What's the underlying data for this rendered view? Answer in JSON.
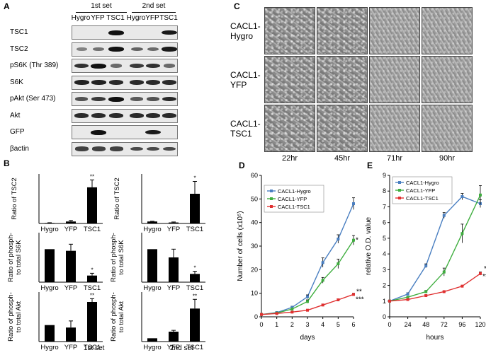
{
  "panelA": {
    "letter": "A",
    "set1": "1st set",
    "set2": "2nd set",
    "lanes": [
      "Hygro",
      "YFP",
      "TSC1",
      "Hygro",
      "YFP",
      "TSC1"
    ],
    "rows": [
      "TSC1",
      "TSC2",
      "pS6K (Thr 389)",
      "S6K",
      "pAkt (Ser 473)",
      "Akt",
      "GFP",
      "βactin"
    ]
  },
  "panelB": {
    "letter": "B",
    "set1_label": "1st set",
    "set2_label": "2nd set",
    "categories": [
      "Hygro",
      "YFP",
      "TSC1"
    ],
    "charts": [
      {
        "ylabel": "Ratio of TSC2",
        "yticks": [
          "0",
          "50",
          "100"
        ],
        "ymax": 100,
        "values": [
          1,
          4,
          73
        ],
        "errors": [
          0.5,
          2,
          15
        ],
        "sig": [
          "",
          "",
          "**"
        ]
      },
      {
        "ylabel": "Ratio of TSC2",
        "yticks": [
          "0",
          "50",
          "100"
        ],
        "ymax": 100,
        "values": [
          4,
          2,
          60
        ],
        "errors": [
          0.5,
          1,
          25
        ],
        "sig": [
          "",
          "",
          "*"
        ]
      },
      {
        "ylabel": "Ratio of phosph- to total S6K",
        "yticks": [
          "0",
          "0.5",
          "1",
          "1.5"
        ],
        "ymax": 1.5,
        "values": [
          1,
          0.95,
          0.2
        ],
        "errors": [
          0,
          0.2,
          0.07
        ],
        "sig": [
          "",
          "",
          "*"
        ]
      },
      {
        "ylabel": "Ratio of phosph- to total S6K",
        "yticks": [
          "0",
          "0.5",
          "1",
          "1.5"
        ],
        "ymax": 1.5,
        "values": [
          1,
          0.75,
          0.25
        ],
        "errors": [
          0,
          0.25,
          0.08
        ],
        "sig": [
          "",
          "",
          "*"
        ]
      },
      {
        "ylabel": "Ratio of phosph- to total Akt",
        "yticks": [
          "0",
          "1",
          "2",
          "3"
        ],
        "ymax": 3,
        "values": [
          1,
          0.85,
          2.4
        ],
        "errors": [
          0,
          0.4,
          0.2
        ],
        "sig": [
          "",
          "",
          "**"
        ]
      },
      {
        "ylabel": "Ratio of phosph- to total Akt",
        "yticks": [
          "0",
          "5",
          "10",
          "15"
        ],
        "ymax": 15,
        "values": [
          1,
          3,
          10
        ],
        "errors": [
          0,
          0.4,
          2.8
        ],
        "sig": [
          "",
          "",
          "**"
        ]
      }
    ]
  },
  "panelC": {
    "letter": "C",
    "rows": [
      "CACL1-Hygro",
      "CACL1-YFP",
      "CACL1-TSC1"
    ],
    "times": [
      "22hr",
      "45hr",
      "71hr",
      "90hr"
    ]
  },
  "chart_data": [
    {
      "type": "line",
      "panel": "D",
      "xlabel": "days",
      "ylabel": "Number of cells (x10⁵)",
      "x": [
        0,
        1,
        2,
        3,
        4,
        5,
        6
      ],
      "xlim": [
        0,
        6
      ],
      "ylim": [
        0,
        60
      ],
      "yticks": [
        0,
        10,
        20,
        30,
        40,
        50,
        60
      ],
      "legend": "top-left",
      "series": [
        {
          "name": "CACL1-Hygro",
          "color": "#4a7fc1",
          "values": [
            1,
            1.8,
            4,
            8.5,
            23,
            33,
            48
          ],
          "errors": [
            0.2,
            0.3,
            0.5,
            0.8,
            2,
            1.8,
            2.5
          ]
        },
        {
          "name": "CACL1-YFP",
          "color": "#3fae3f",
          "values": [
            1,
            1.6,
            3.3,
            6.5,
            15.5,
            22.5,
            32.5
          ],
          "errors": [
            0.2,
            0.3,
            0.4,
            0.7,
            1.2,
            2,
            2
          ]
        },
        {
          "name": "CACL1-TSC1",
          "color": "#e03030",
          "values": [
            1,
            1.4,
            2,
            2.8,
            5,
            7.2,
            9.5
          ],
          "errors": [
            0.1,
            0.2,
            0.2,
            0.3,
            0.4,
            0.4,
            0.5
          ]
        }
      ],
      "annotations": [
        "*",
        "**",
        "***"
      ]
    },
    {
      "type": "line",
      "panel": "E",
      "xlabel": "hours",
      "ylabel": "relative O.D. value",
      "x": [
        0,
        24,
        48,
        72,
        96,
        120
      ],
      "xlim": [
        0,
        120
      ],
      "ylim": [
        0,
        9
      ],
      "yticks": [
        0,
        1,
        2,
        3,
        4,
        5,
        6,
        7,
        8,
        9
      ],
      "legend": "top-left",
      "series": [
        {
          "name": "CACL1-Hygro",
          "color": "#4a7fc1",
          "values": [
            1,
            1.45,
            3.25,
            6.45,
            7.65,
            7.2
          ],
          "errors": [
            0.05,
            0.08,
            0.12,
            0.18,
            0.2,
            0.25
          ]
        },
        {
          "name": "CACL1-YFP",
          "color": "#3fae3f",
          "values": [
            1,
            1.25,
            1.6,
            2.85,
            5.3,
            7.75
          ],
          "errors": [
            0.05,
            0.05,
            0.08,
            0.25,
            0.6,
            0.6
          ]
        },
        {
          "name": "CACL1-TSC1",
          "color": "#e03030",
          "values": [
            1,
            1.1,
            1.35,
            1.6,
            1.95,
            2.75
          ],
          "errors": [
            0.03,
            0.04,
            0.05,
            0.05,
            0.06,
            0.1
          ]
        }
      ],
      "annotations": [
        "**",
        "***"
      ]
    }
  ]
}
